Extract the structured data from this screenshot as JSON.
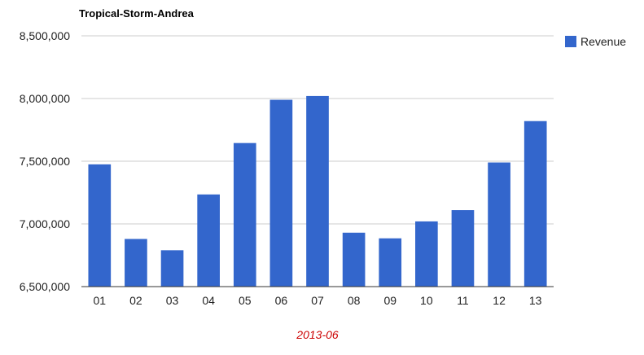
{
  "chart_data": {
    "type": "bar",
    "title": "Tropical-Storm-Andrea",
    "xlabel": "2013-06",
    "ylabel": "",
    "categories": [
      "01",
      "02",
      "03",
      "04",
      "05",
      "06",
      "07",
      "08",
      "09",
      "10",
      "11",
      "12",
      "13"
    ],
    "series": [
      {
        "name": "Revenue",
        "color": "#3366cc",
        "values": [
          7475000,
          6880000,
          6790000,
          7235000,
          7645000,
          7990000,
          8020000,
          6930000,
          6885000,
          7020000,
          7110000,
          7490000,
          7820000
        ]
      }
    ],
    "ylim": [
      6500000,
      8500000
    ],
    "yticks": [
      6500000,
      7000000,
      7500000,
      8000000,
      8500000
    ],
    "ytick_labels": [
      "6,500,000",
      "7,000,000",
      "7,500,000",
      "8,000,000",
      "8,500,000"
    ],
    "grid": true,
    "legend_position": "right",
    "colors": {
      "xlabel": "#cc0000",
      "gridline": "#cccccc",
      "baseline": "#333333"
    }
  }
}
